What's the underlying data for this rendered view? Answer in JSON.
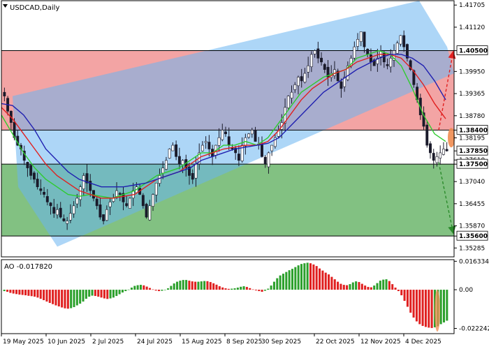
{
  "chart_data": [
    {
      "type": "candlestick",
      "title": "USDCAD,Daily",
      "y_ticks": [
        "1.41705",
        "1.41120",
        "1.40500",
        "1.39950",
        "1.39365",
        "1.38780",
        "1.38400",
        "1.38195",
        "1.37850",
        "1.37610",
        "1.37500",
        "1.37040",
        "1.36455",
        "1.35870",
        "1.35600",
        "1.35285"
      ],
      "ylim": [
        1.3505,
        1.4182
      ],
      "levels": [
        {
          "value": 1.405,
          "label": "1.40500",
          "color": "#f08a8a"
        },
        {
          "value": 1.384,
          "label": "1.38400",
          "color": "#ffffff"
        },
        {
          "value": 1.375,
          "label": "1.37500",
          "color": "#5fb05f"
        },
        {
          "value": 1.356,
          "label": "1.35600",
          "color": "#5fb05f"
        }
      ],
      "current_price": "1.37850",
      "x_ticks": [
        "19 May 2025",
        "10 Jun 2025",
        "2 Jul 2025",
        "24 Jul 2025",
        "15 Aug 2025",
        "8 Sep 2025",
        "30 Sep 2025",
        "22 Oct 2025",
        "12 Nov 2025",
        "4 Dec 2025"
      ],
      "series": [
        {
          "name": "Price",
          "values": [
            1.393,
            1.389,
            1.386,
            1.382,
            1.38,
            1.379,
            1.376,
            1.374,
            1.372,
            1.371,
            1.369,
            1.368,
            1.367,
            1.365,
            1.364,
            1.362,
            1.363,
            1.361,
            1.36,
            1.36,
            1.362,
            1.364,
            1.366,
            1.369,
            1.372,
            1.37,
            1.368,
            1.366,
            1.364,
            1.361,
            1.36,
            1.363,
            1.365,
            1.366,
            1.368,
            1.367,
            1.365,
            1.364,
            1.366,
            1.368,
            1.369,
            1.367,
            1.364,
            1.361,
            1.364,
            1.367,
            1.37,
            1.372,
            1.374,
            1.376,
            1.379,
            1.38,
            1.377,
            1.375,
            1.376,
            1.374,
            1.372,
            1.371,
            1.375,
            1.378,
            1.38,
            1.381,
            1.379,
            1.377,
            1.38,
            1.382,
            1.384,
            1.383,
            1.38,
            1.379,
            1.378,
            1.376,
            1.38,
            1.382,
            1.383,
            1.384,
            1.381,
            1.38,
            1.377,
            1.375,
            1.378,
            1.38,
            1.382,
            1.384,
            1.386,
            1.39,
            1.393,
            1.394,
            1.396,
            1.398,
            1.397,
            1.399,
            1.401,
            1.404,
            1.405,
            1.403,
            1.402,
            1.4,
            1.398,
            1.399,
            1.4,
            1.397,
            1.395,
            1.398,
            1.401,
            1.403,
            1.406,
            1.408,
            1.41,
            1.406,
            1.404,
            1.402,
            1.401,
            1.403,
            1.405,
            1.402,
            1.401,
            1.403,
            1.405,
            1.407,
            1.409,
            1.406,
            1.403,
            1.4,
            1.396,
            1.392,
            1.388,
            1.385,
            1.38,
            1.378,
            1.376,
            1.377,
            1.378,
            1.379,
            1.3785
          ]
        },
        {
          "name": "MA fast",
          "color": "#2ecc2e",
          "values": [
            1.388,
            1.383,
            1.378,
            1.374,
            1.371,
            1.369,
            1.367,
            1.3665,
            1.367,
            1.3665,
            1.366,
            1.367,
            1.368,
            1.37,
            1.372,
            1.373,
            1.374,
            1.376,
            1.378,
            1.378,
            1.38,
            1.38,
            1.381,
            1.38,
            1.382,
            1.386,
            1.39,
            1.394,
            1.396,
            1.398,
            1.399,
            1.4,
            1.403,
            1.404,
            1.405,
            1.404,
            1.401,
            1.395,
            1.388,
            1.383,
            1.381
          ]
        },
        {
          "name": "MA medium",
          "color": "#e02020",
          "values": [
            1.39,
            1.387,
            1.383,
            1.379,
            1.375,
            1.372,
            1.37,
            1.368,
            1.367,
            1.366,
            1.366,
            1.3665,
            1.367,
            1.369,
            1.371,
            1.372,
            1.373,
            1.375,
            1.377,
            1.378,
            1.379,
            1.3795,
            1.38,
            1.38,
            1.381,
            1.384,
            1.388,
            1.392,
            1.395,
            1.397,
            1.399,
            1.4,
            1.402,
            1.403,
            1.404,
            1.404,
            1.403,
            1.4,
            1.396,
            1.391,
            1.387
          ]
        },
        {
          "name": "MA slow",
          "color": "#2020b0",
          "values": [
            1.391,
            1.3905,
            1.388,
            1.384,
            1.379,
            1.376,
            1.373,
            1.371,
            1.37,
            1.369,
            1.369,
            1.369,
            1.3695,
            1.37,
            1.371,
            1.372,
            1.373,
            1.374,
            1.376,
            1.377,
            1.378,
            1.379,
            1.3795,
            1.38,
            1.3805,
            1.382,
            1.385,
            1.388,
            1.391,
            1.394,
            1.396,
            1.398,
            1.4,
            1.4015,
            1.403,
            1.404,
            1.404,
            1.403,
            1.401,
            1.397,
            1.392
          ]
        }
      ]
    },
    {
      "type": "bar",
      "title": "AO -0.017820",
      "y_ticks": [
        "0.016334",
        "0.00",
        "-0.022242"
      ],
      "ylim": [
        -0.02524,
        0.01727
      ],
      "series": [
        {
          "name": "AO",
          "values": [
            -0.0008,
            -0.0012,
            -0.0018,
            -0.0022,
            -0.0025,
            -0.0028,
            -0.003,
            -0.0032,
            -0.0035,
            -0.0037,
            -0.004,
            -0.0045,
            -0.0052,
            -0.006,
            -0.0068,
            -0.0076,
            -0.0083,
            -0.009,
            -0.0096,
            -0.0102,
            -0.0107,
            -0.0109,
            -0.0106,
            -0.01,
            -0.009,
            -0.008,
            -0.0068,
            -0.0052,
            -0.004,
            -0.0034,
            -0.0036,
            -0.004,
            -0.0045,
            -0.005,
            -0.0053,
            -0.005,
            -0.0045,
            -0.0036,
            -0.0026,
            -0.0016,
            -0.0008,
            0.0001,
            0.0012,
            0.0022,
            0.0026,
            0.0028,
            0.0025,
            0.0018,
            0.001,
            0.0002,
            -0.0005,
            -0.0008,
            -0.0006,
            -0.0001,
            0.0008,
            0.0022,
            0.0036,
            0.0046,
            0.0052,
            0.0056,
            0.0056,
            0.0052,
            0.0048,
            0.0046,
            0.0046,
            0.0048,
            0.005,
            0.0049,
            0.0044,
            0.0037,
            0.0029,
            0.002,
            0.0013,
            0.0008,
            0.0005,
            0.0006,
            0.0008,
            0.0012,
            0.0017,
            0.002,
            0.0016,
            0.0009,
            0.0002,
            -0.0004,
            -0.0008,
            -0.0012,
            -0.0006,
            0.0006,
            0.0024,
            0.0046,
            0.0066,
            0.0082,
            0.0092,
            0.0102,
            0.0112,
            0.012,
            0.013,
            0.014,
            0.0148,
            0.0152,
            0.0155,
            0.0152,
            0.0145,
            0.0136,
            0.0122,
            0.011,
            0.0098,
            0.0088,
            0.0074,
            0.006,
            0.0046,
            0.0034,
            0.0028,
            0.0026,
            0.0032,
            0.0042,
            0.0048,
            0.0044,
            0.0034,
            0.0024,
            0.0016,
            0.0014,
            0.0024,
            0.0038,
            0.0052,
            0.0058,
            0.006,
            0.005,
            0.0032,
            0.0012,
            -0.0008,
            -0.0032,
            -0.0064,
            -0.0098,
            -0.0132,
            -0.016,
            -0.0182,
            -0.0198,
            -0.0208,
            -0.0214,
            -0.0218,
            -0.022,
            -0.0216,
            -0.021,
            -0.0198,
            -0.0188,
            -0.0178
          ]
        }
      ]
    }
  ]
}
